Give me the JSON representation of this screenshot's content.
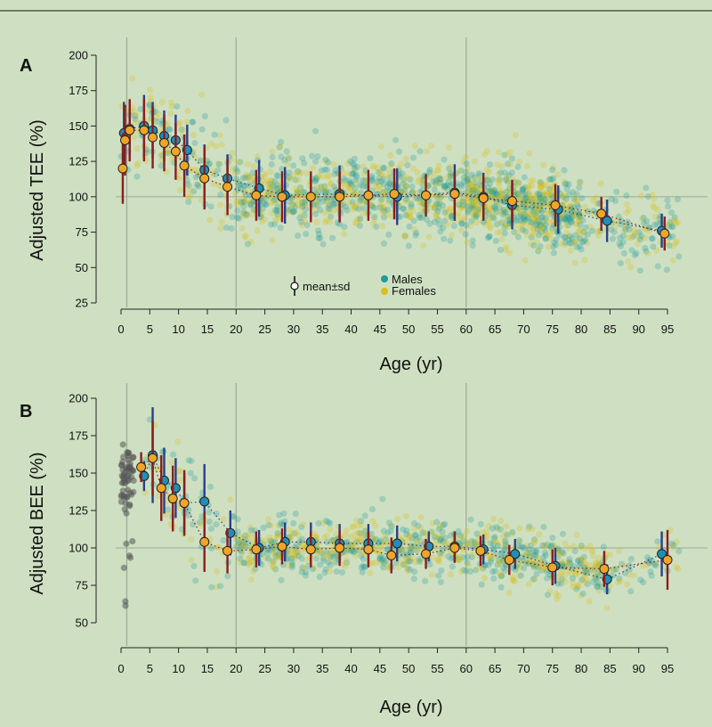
{
  "colors": {
    "background": "#cfe0c2",
    "males": "#1f9a9e",
    "females": "#d9bf1c",
    "infants": "#555555",
    "male_marker": "#1f8fb8",
    "female_marker": "#f0a52a",
    "male_bar": "#2b3f88",
    "female_bar": "#8a1e1e",
    "ref_line": "#9aaa94"
  },
  "chart_data": [
    {
      "id": "A",
      "type": "scatter",
      "panel_label": "A",
      "ylabel": "Adjusted TEE (%)",
      "xlabel": "Age (yr)",
      "xlim": [
        -1,
        100
      ],
      "ylim": [
        25,
        205
      ],
      "xticks": [
        0,
        5,
        10,
        15,
        20,
        25,
        30,
        35,
        40,
        45,
        50,
        55,
        60,
        65,
        70,
        75,
        80,
        85,
        90,
        95
      ],
      "yticks": [
        25,
        50,
        75,
        100,
        125,
        150,
        175,
        200
      ],
      "vlines": [
        1,
        20,
        60
      ],
      "hline": 100,
      "legend": {
        "sd_label": "mean±sd",
        "males_label": "Males",
        "females_label": "Females",
        "placement": "bottom-center"
      },
      "series": [
        {
          "name": "Males",
          "points": [
            {
              "age": 0.5,
              "mean": 145,
              "sd": 22
            },
            {
              "age": 1.5,
              "mean": 148,
              "sd": 20
            },
            {
              "age": 4,
              "mean": 150,
              "sd": 22
            },
            {
              "age": 5.5,
              "mean": 147,
              "sd": 20
            },
            {
              "age": 7.5,
              "mean": 143,
              "sd": 18
            },
            {
              "age": 9.5,
              "mean": 140,
              "sd": 18
            },
            {
              "age": 11.5,
              "mean": 133,
              "sd": 18
            },
            {
              "age": 14.5,
              "mean": 119,
              "sd": 18
            },
            {
              "age": 18.5,
              "mean": 113,
              "sd": 17
            },
            {
              "age": 24,
              "mean": 106,
              "sd": 20
            },
            {
              "age": 28.5,
              "mean": 101,
              "sd": 20
            },
            {
              "age": 38,
              "mean": 102,
              "sd": 20
            },
            {
              "age": 48,
              "mean": 100,
              "sd": 20
            },
            {
              "age": 58,
              "mean": 103,
              "sd": 20
            },
            {
              "age": 63,
              "mean": 100,
              "sd": 17
            },
            {
              "age": 68,
              "mean": 94,
              "sd": 17
            },
            {
              "age": 76,
              "mean": 91,
              "sd": 17
            },
            {
              "age": 84.5,
              "mean": 83,
              "sd": 15
            },
            {
              "age": 94,
              "mean": 76,
              "sd": 12
            }
          ]
        },
        {
          "name": "Females",
          "points": [
            {
              "age": 0.3,
              "mean": 120,
              "sd": 25
            },
            {
              "age": 0.7,
              "mean": 140,
              "sd": 25
            },
            {
              "age": 1.5,
              "mean": 147,
              "sd": 22
            },
            {
              "age": 4,
              "mean": 147,
              "sd": 22
            },
            {
              "age": 5.5,
              "mean": 142,
              "sd": 22
            },
            {
              "age": 7.5,
              "mean": 138,
              "sd": 20
            },
            {
              "age": 9.5,
              "mean": 132,
              "sd": 20
            },
            {
              "age": 11,
              "mean": 122,
              "sd": 22
            },
            {
              "age": 14.5,
              "mean": 113,
              "sd": 22
            },
            {
              "age": 18.5,
              "mean": 107,
              "sd": 20
            },
            {
              "age": 23.5,
              "mean": 101,
              "sd": 18
            },
            {
              "age": 28,
              "mean": 100,
              "sd": 18
            },
            {
              "age": 33,
              "mean": 100,
              "sd": 18
            },
            {
              "age": 38,
              "mean": 100,
              "sd": 18
            },
            {
              "age": 43,
              "mean": 101,
              "sd": 18
            },
            {
              "age": 47.5,
              "mean": 102,
              "sd": 18
            },
            {
              "age": 53,
              "mean": 101,
              "sd": 15
            },
            {
              "age": 58,
              "mean": 102,
              "sd": 15
            },
            {
              "age": 63,
              "mean": 99,
              "sd": 15
            },
            {
              "age": 68,
              "mean": 97,
              "sd": 15
            },
            {
              "age": 75.5,
              "mean": 94,
              "sd": 15
            },
            {
              "age": 83.5,
              "mean": 88,
              "sd": 12
            },
            {
              "age": 94.5,
              "mean": 74,
              "sd": 12
            }
          ]
        }
      ]
    },
    {
      "id": "B",
      "type": "scatter",
      "panel_label": "B",
      "ylabel": "Adjusted BEE (%)",
      "xlabel": "Age (yr)",
      "xlim": [
        -1,
        100
      ],
      "ylim": [
        35,
        205
      ],
      "xticks": [
        0,
        5,
        10,
        15,
        20,
        25,
        30,
        35,
        40,
        45,
        50,
        55,
        60,
        65,
        70,
        75,
        80,
        85,
        90,
        95
      ],
      "yticks": [
        50,
        75,
        100,
        125,
        150,
        175,
        200
      ],
      "vlines": [
        1,
        20,
        60
      ],
      "hline": 100,
      "series": [
        {
          "name": "Males",
          "points": [
            {
              "age": 4,
              "mean": 148,
              "sd": 10
            },
            {
              "age": 5.5,
              "mean": 162,
              "sd": 32
            },
            {
              "age": 7.5,
              "mean": 145,
              "sd": 22
            },
            {
              "age": 9.5,
              "mean": 140,
              "sd": 20
            },
            {
              "age": 11,
              "mean": 130,
              "sd": 20
            },
            {
              "age": 14.5,
              "mean": 131,
              "sd": 25
            },
            {
              "age": 19,
              "mean": 110,
              "sd": 15
            },
            {
              "age": 24,
              "mean": 100,
              "sd": 12
            },
            {
              "age": 28.5,
              "mean": 104,
              "sd": 13
            },
            {
              "age": 33,
              "mean": 104,
              "sd": 13
            },
            {
              "age": 38,
              "mean": 103,
              "sd": 13
            },
            {
              "age": 43,
              "mean": 103,
              "sd": 13
            },
            {
              "age": 48,
              "mean": 103,
              "sd": 12
            },
            {
              "age": 53.5,
              "mean": 101,
              "sd": 10
            },
            {
              "age": 58,
              "mean": 101,
              "sd": 10
            },
            {
              "age": 63,
              "mean": 99,
              "sd": 10
            },
            {
              "age": 68.5,
              "mean": 96,
              "sd": 10
            },
            {
              "age": 75.5,
              "mean": 88,
              "sd": 12
            },
            {
              "age": 84.5,
              "mean": 79,
              "sd": 10
            },
            {
              "age": 94,
              "mean": 96,
              "sd": 15
            }
          ]
        },
        {
          "name": "Females",
          "points": [
            {
              "age": 3.5,
              "mean": 154,
              "sd": 10
            },
            {
              "age": 5.5,
              "mean": 160,
              "sd": 25
            },
            {
              "age": 7,
              "mean": 140,
              "sd": 22
            },
            {
              "age": 9,
              "mean": 133,
              "sd": 22
            },
            {
              "age": 11,
              "mean": 130,
              "sd": 22
            },
            {
              "age": 14.5,
              "mean": 104,
              "sd": 20
            },
            {
              "age": 18.5,
              "mean": 98,
              "sd": 15
            },
            {
              "age": 23.5,
              "mean": 99,
              "sd": 12
            },
            {
              "age": 28,
              "mean": 101,
              "sd": 12
            },
            {
              "age": 33,
              "mean": 99,
              "sd": 12
            },
            {
              "age": 38,
              "mean": 100,
              "sd": 12
            },
            {
              "age": 43,
              "mean": 99,
              "sd": 12
            },
            {
              "age": 47,
              "mean": 95,
              "sd": 12
            },
            {
              "age": 53,
              "mean": 96,
              "sd": 10
            },
            {
              "age": 58,
              "mean": 100,
              "sd": 10
            },
            {
              "age": 62.5,
              "mean": 98,
              "sd": 10
            },
            {
              "age": 67.5,
              "mean": 92,
              "sd": 10
            },
            {
              "age": 75,
              "mean": 87,
              "sd": 12
            },
            {
              "age": 84,
              "mean": 86,
              "sd": 12
            },
            {
              "age": 95,
              "mean": 92,
              "sd": 20
            }
          ]
        }
      ]
    }
  ]
}
